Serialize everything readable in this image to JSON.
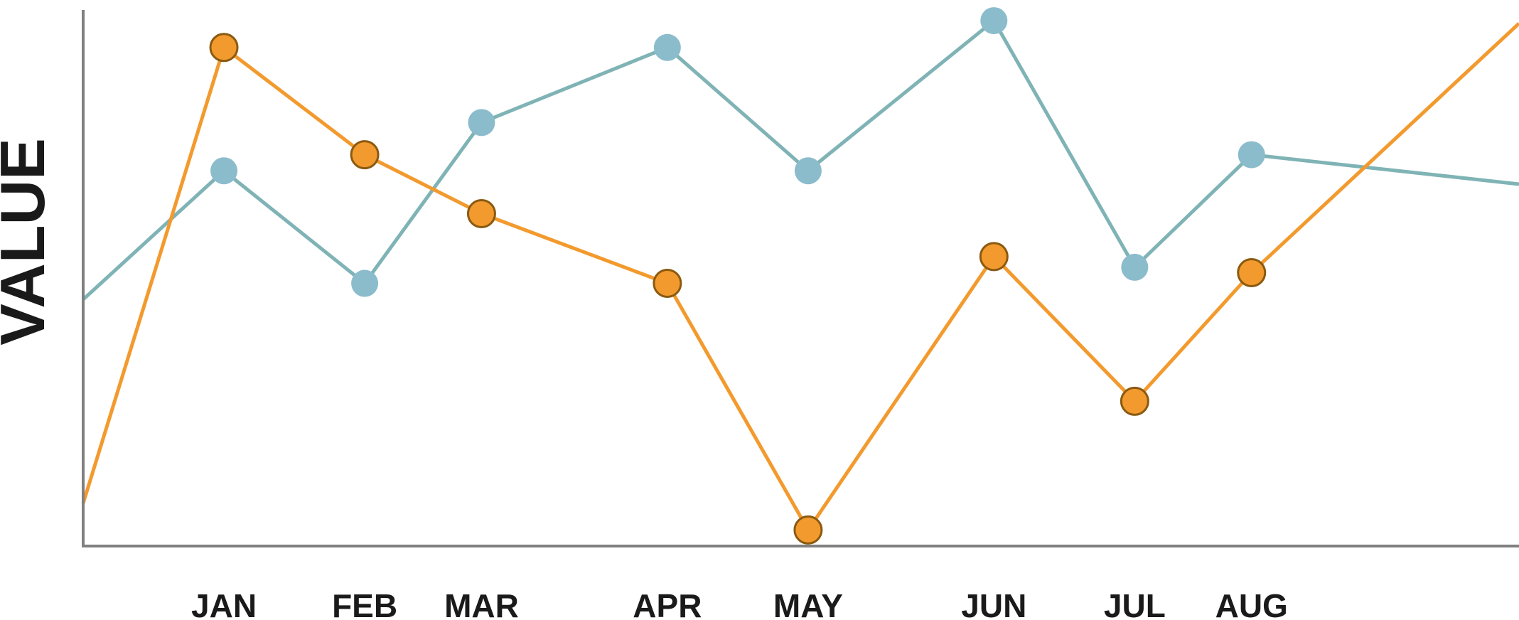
{
  "chart_data": {
    "type": "line",
    "title": "",
    "xlabel": "",
    "ylabel": "VALUE",
    "categories": [
      "JAN",
      "FEB",
      "MAR",
      "APR",
      "MAY",
      "JUN",
      "JUL",
      "AUG"
    ],
    "x_range": [
      -1,
      9.2
    ],
    "ylim": [
      0,
      100
    ],
    "grid": false,
    "legend": "none",
    "series": [
      {
        "color": "#7fb3b5",
        "marker_color": "#8bbccc",
        "start_value": 46,
        "values": [
          70,
          49,
          79,
          93,
          70,
          98,
          52,
          73
        ],
        "end_value": 67.5
      },
      {
        "color": "#f39a2e",
        "marker_color": "#f39a2e",
        "marker_stroke": "#8a5a10",
        "start_value": 8,
        "values": [
          93,
          73,
          62,
          49,
          3,
          54,
          27,
          51
        ],
        "end_value": 97.5
      }
    ]
  }
}
